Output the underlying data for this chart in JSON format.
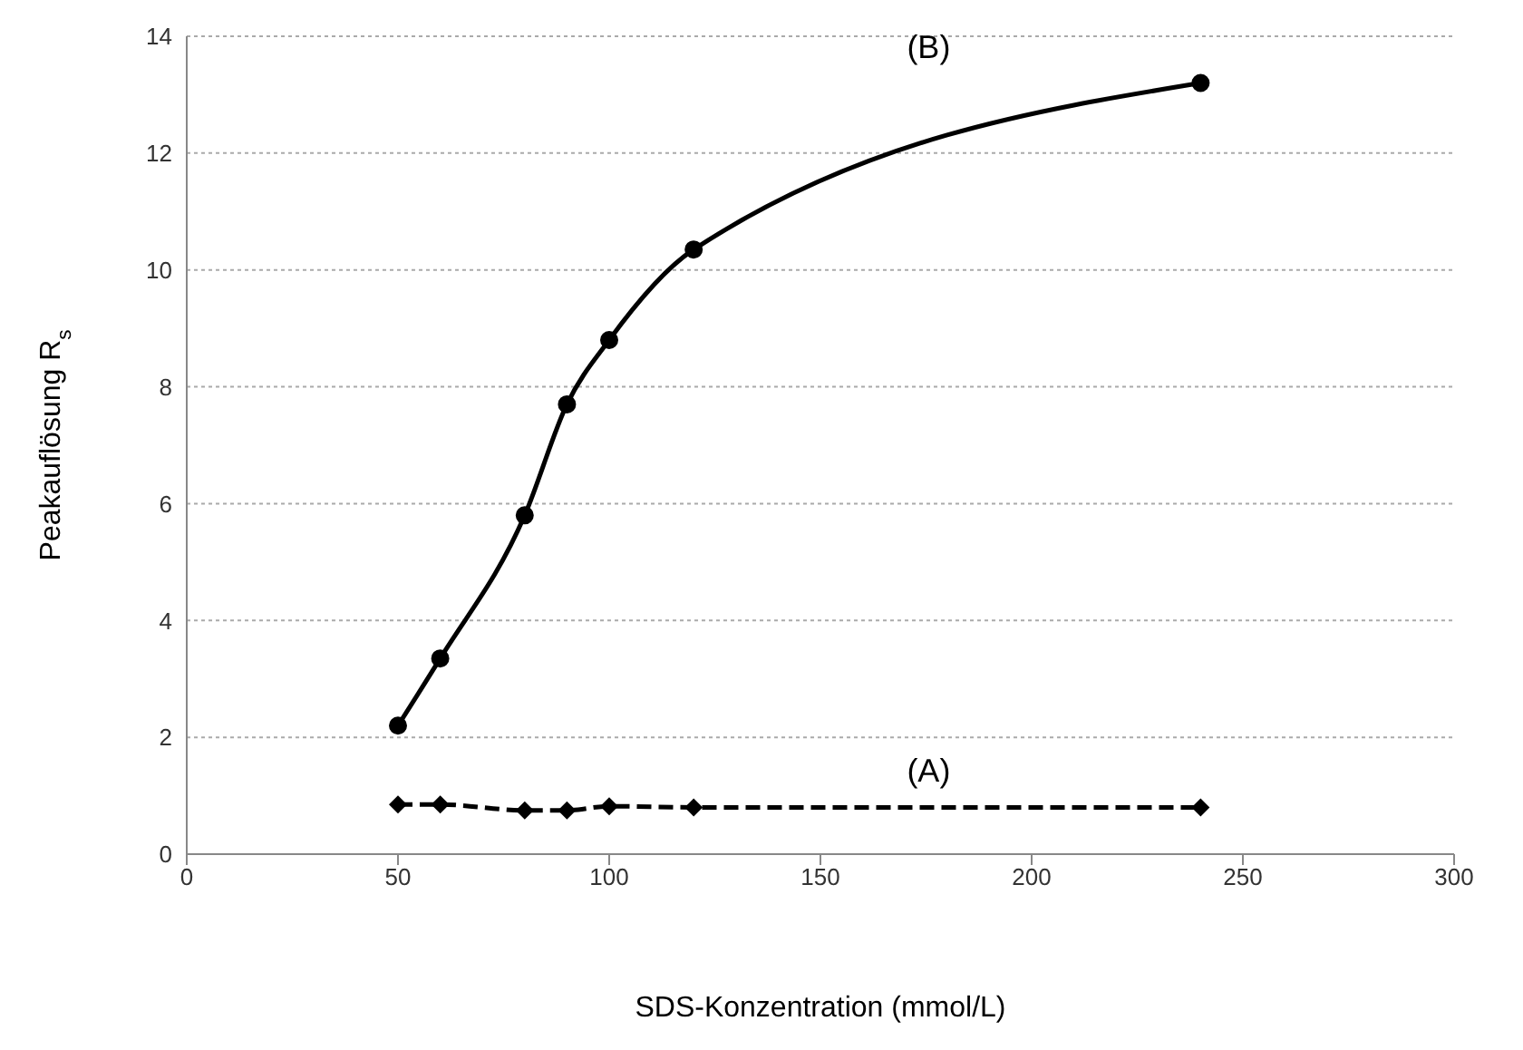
{
  "chart_data": {
    "type": "line",
    "xlabel": "SDS-Konzentration (mmol/L)",
    "ylabel": "Peakauflösung R$_{s}$",
    "x": [
      50,
      60,
      80,
      90,
      100,
      120,
      240
    ],
    "series": [
      {
        "name": "(A)",
        "color": "#000000",
        "values": [
          0.85,
          0.85,
          0.75,
          0.75,
          0.82,
          0.8,
          0.8
        ],
        "marker": "diamond",
        "line_style": "dashed"
      },
      {
        "name": "(B)",
        "color": "#000000",
        "values": [
          2.2,
          3.35,
          5.8,
          7.7,
          8.8,
          10.35,
          13.2
        ],
        "marker": "circle",
        "line_style": "solid"
      }
    ],
    "xlim": [
      0,
      300
    ],
    "xticks": [
      0,
      50,
      100,
      150,
      200,
      250,
      300
    ],
    "ylim": [
      0,
      14
    ],
    "yticks": [
      0,
      2,
      4,
      6,
      8,
      10,
      12,
      14
    ],
    "grid": "y"
  }
}
